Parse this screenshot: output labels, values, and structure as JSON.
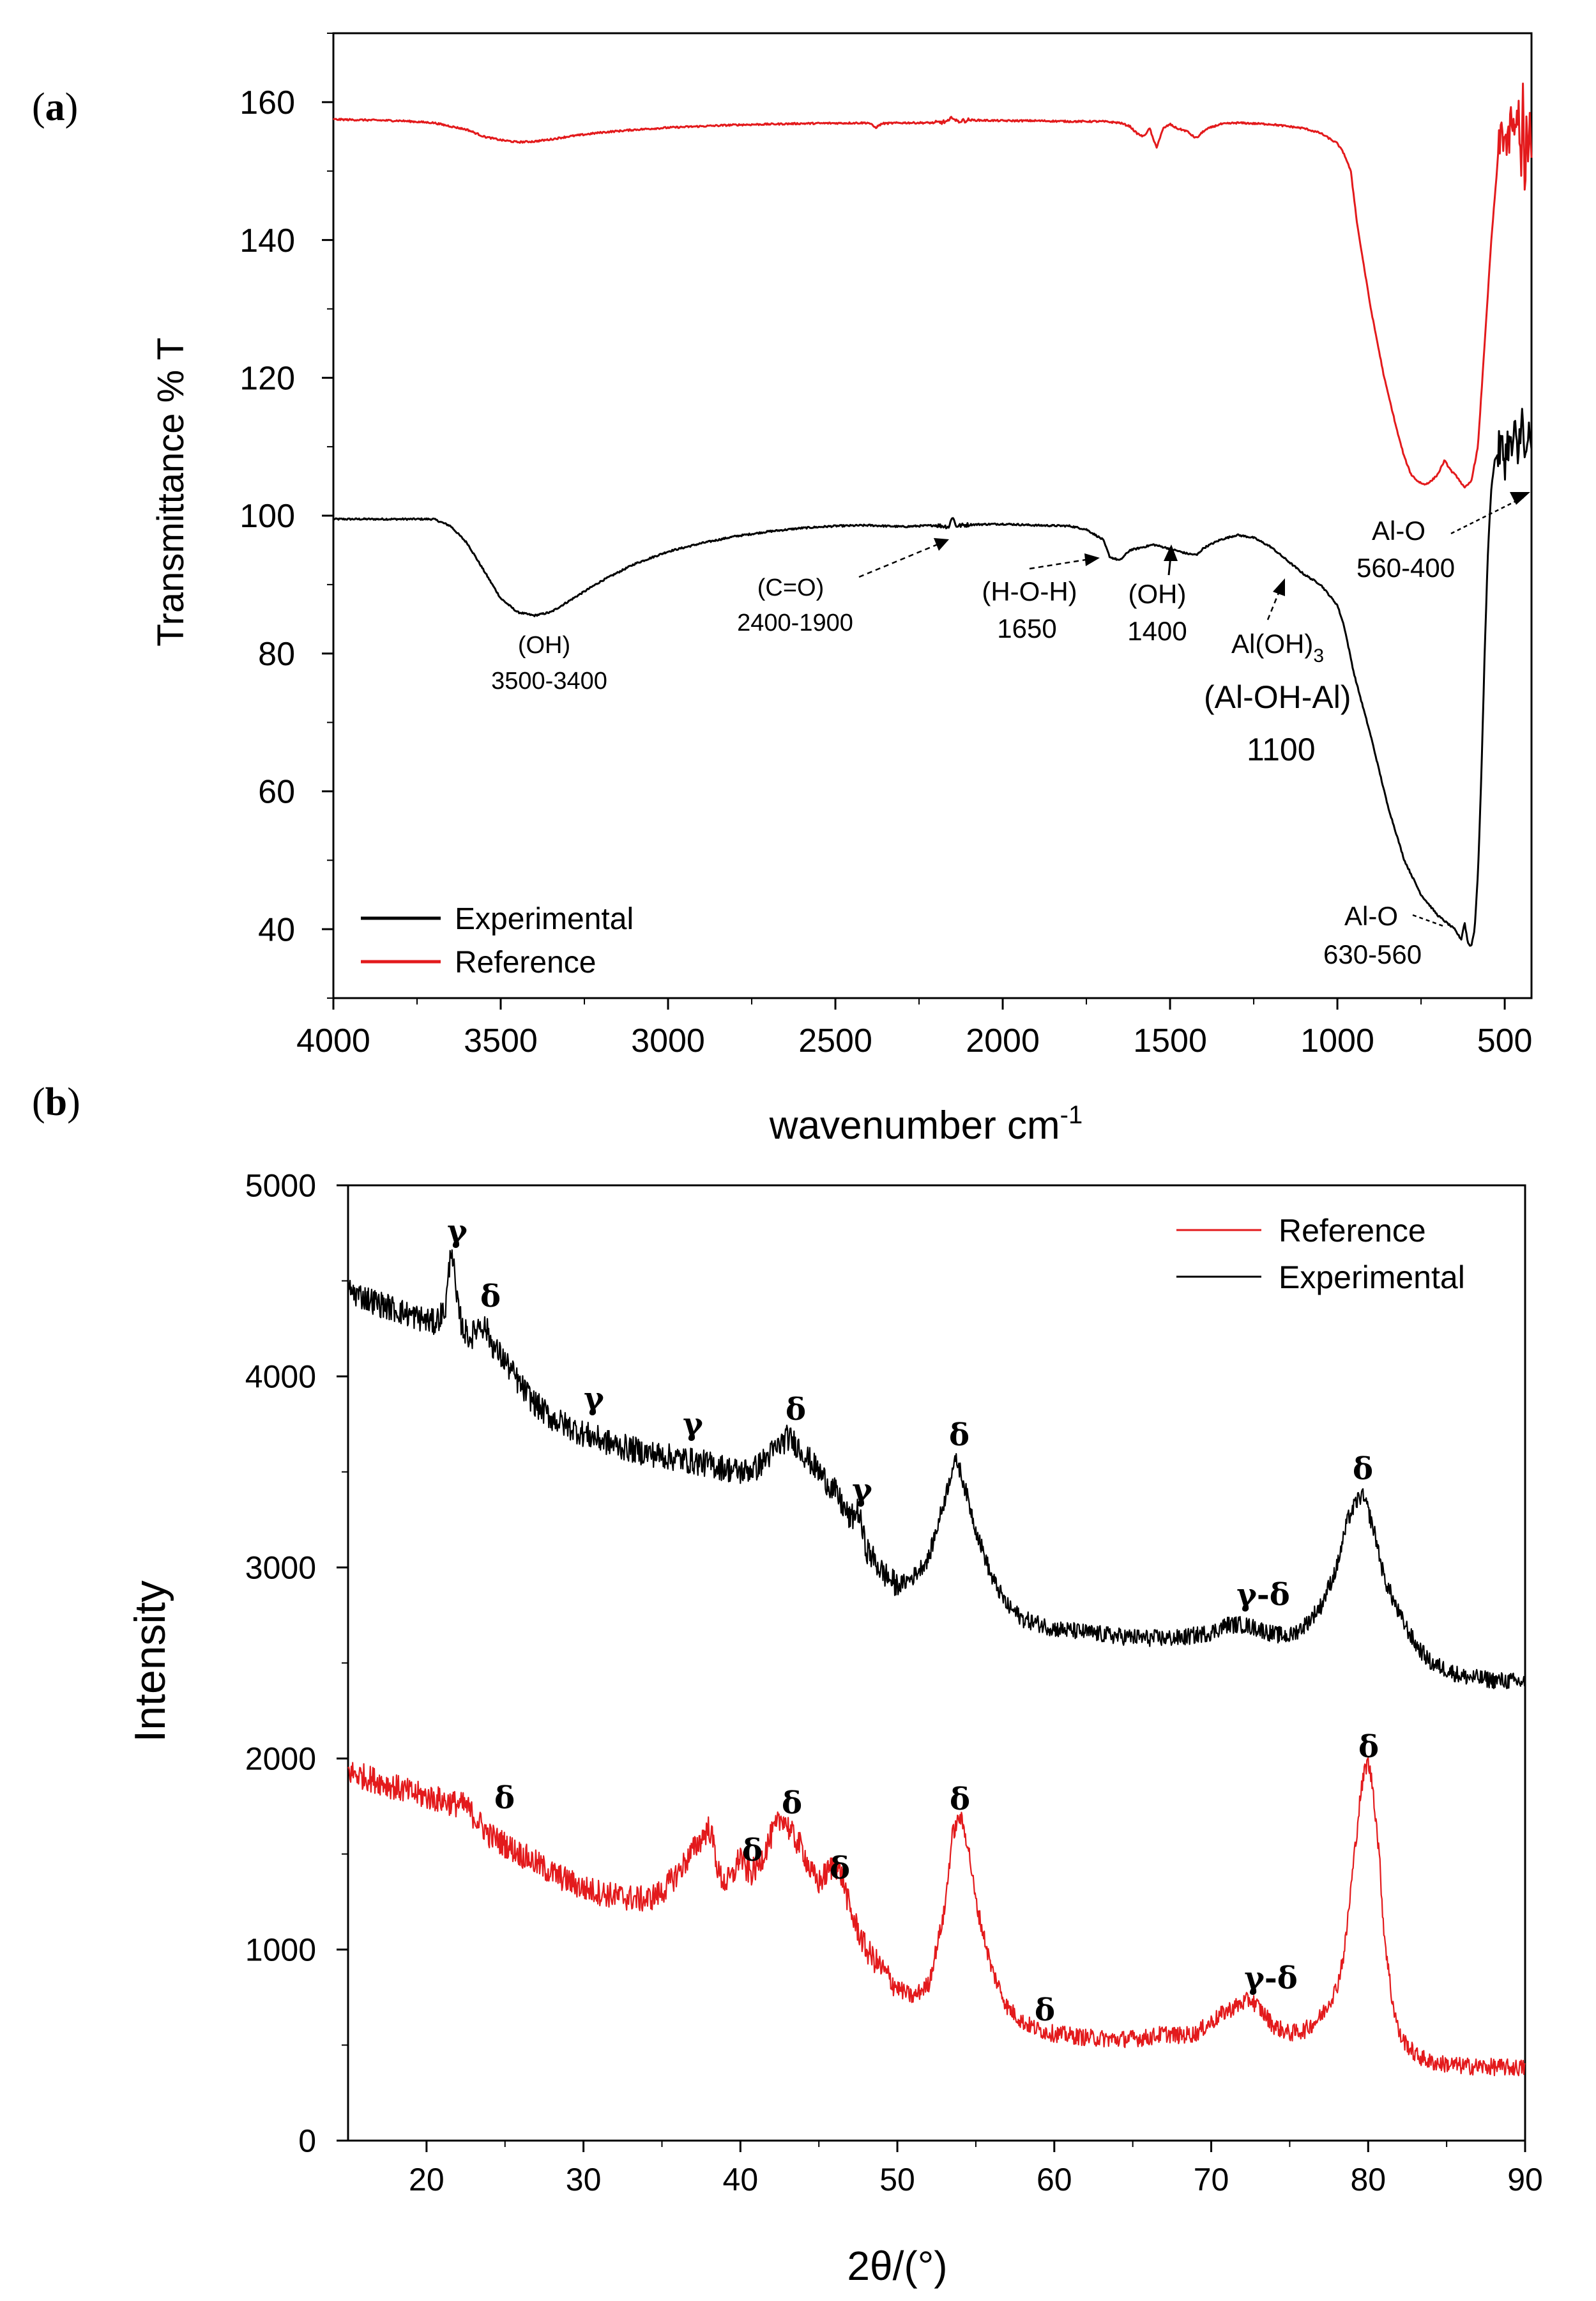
{
  "panels": [
    {
      "label": "(a)",
      "label_parts": [
        "(",
        "a",
        ")"
      ],
      "chart_data": {
        "type": "line",
        "title": "",
        "xlabel": "wavenumber cm",
        "xlabel_sup": "-1",
        "ylabel": "Transmittance % T",
        "xlim": [
          4000,
          420
        ],
        "ylim": [
          30,
          170
        ],
        "x_ticks": [
          "4000",
          "3500",
          "3000",
          "2500",
          "2000",
          "1500",
          "1000",
          "500"
        ],
        "x_tick_values": [
          4000,
          3500,
          3000,
          2500,
          2000,
          1500,
          1000,
          500
        ],
        "y_ticks": [
          "40",
          "60",
          "80",
          "100",
          "120",
          "140",
          "160"
        ],
        "y_tick_values": [
          40,
          60,
          80,
          100,
          120,
          140,
          160
        ],
        "legend": {
          "position": "bottom-left",
          "entries": [
            "Experimental",
            "Reference"
          ]
        },
        "series": [
          {
            "name": "Experimental",
            "color": "#000000",
            "x": [
              4000,
              3800,
              3700,
              3650,
              3600,
              3550,
              3500,
              3450,
              3400,
              3350,
              3300,
              3200,
              3100,
              3000,
              2900,
              2800,
              2700,
              2600,
              2500,
              2400,
              2300,
              2200,
              2160,
              2150,
              2140,
              2100,
              2000,
              1900,
              1800,
              1750,
              1700,
              1680,
              1650,
              1620,
              1600,
              1550,
              1500,
              1450,
              1420,
              1400,
              1380,
              1350,
              1300,
              1250,
              1200,
              1150,
              1100,
              1050,
              1000,
              980,
              950,
              900,
              850,
              800,
              750,
              700,
              650,
              630,
              620,
              610,
              600,
              590,
              580,
              570,
              560,
              550,
              540,
              530,
              520,
              510,
              500,
              490,
              480,
              470,
              460,
              450,
              440,
              430,
              420
            ],
            "y": [
              99.5,
              99.5,
              99.5,
              98.5,
              96,
              92,
              88,
              86,
              85.5,
              86,
              87.5,
              90.5,
              93,
              94.8,
              96,
              97,
              97.7,
              98.2,
              98.5,
              98.6,
              98.4,
              98.6,
              98.4,
              100,
              98.5,
              98.7,
              98.8,
              98.6,
              98.5,
              98,
              96.5,
              94,
              93.5,
              95,
              95.2,
              95.8,
              95.2,
              94.5,
              94.3,
              95.3,
              95.8,
              96.5,
              97.2,
              96.8,
              95.5,
              93.5,
              91.5,
              90,
              87,
              84,
              77,
              68,
              58,
              50,
              45,
              42,
              40,
              38.5,
              41,
              38,
              37.5,
              40,
              48,
              62,
              80,
              95,
              104,
              108,
              109,
              110,
              108,
              111,
              109,
              112,
              108,
              116,
              107,
              112,
              108
            ]
          },
          {
            "name": "Reference",
            "color": "#e31a1c",
            "x": [
              4000,
              3800,
              3700,
              3600,
              3550,
              3500,
              3450,
              3400,
              3350,
              3300,
              3200,
              3100,
              3000,
              2800,
              2600,
              2400,
              2380,
              2360,
              2300,
              2200,
              2160,
              2150,
              2140,
              2100,
              2000,
              1900,
              1800,
              1700,
              1650,
              1620,
              1600,
              1580,
              1560,
              1550,
              1540,
              1520,
              1500,
              1480,
              1450,
              1430,
              1420,
              1400,
              1380,
              1350,
              1300,
              1200,
              1100,
              1050,
              1000,
              980,
              960,
              950,
              940,
              920,
              900,
              880,
              860,
              840,
              820,
              800,
              780,
              760,
              740,
              720,
              700,
              680,
              660,
              640,
              620,
              600,
              580,
              560,
              540,
              520,
              510,
              500,
              490,
              480,
              470,
              460,
              450,
              445,
              440,
              435,
              430,
              425,
              420
            ],
            "y": [
              157.5,
              157.3,
              157,
              156,
              155,
              154.5,
              154.2,
              154.3,
              154.6,
              155,
              155.6,
              156,
              156.3,
              156.7,
              156.9,
              157,
              156.3,
              156.9,
              157,
              157,
              157.2,
              158,
              157.2,
              157.4,
              157.3,
              157.3,
              157.2,
              157.2,
              157,
              156.5,
              155.5,
              155,
              156.2,
              154.5,
              153.5,
              156.2,
              156.8,
              156.2,
              155.8,
              155,
              154.8,
              155.8,
              156.3,
              156.8,
              157,
              156.8,
              156.2,
              155.5,
              154,
              152.5,
              150,
              146,
              142,
              136,
              130,
              125,
              120,
              116,
              112,
              108.5,
              106,
              105,
              104.5,
              105,
              106,
              108,
              106.5,
              105.5,
              104,
              105,
              110,
              125,
              140,
              152,
              156,
              155,
              153,
              158,
              154,
              160,
              151,
              161,
              145,
              158,
              150,
              156,
              152
            ]
          }
        ],
        "annotations": [
          {
            "lines": [
              "(OH)",
              "3500-3400"
            ]
          },
          {
            "lines": [
              "(C=O)",
              "2400-1900"
            ]
          },
          {
            "lines": [
              "(H-O-H)",
              "1650"
            ]
          },
          {
            "lines": [
              "(OH)",
              "1400"
            ]
          },
          {
            "lines": [
              "Al(OH)",
              "(Al-OH-Al)",
              "1100"
            ],
            "subscript": "3"
          },
          {
            "lines": [
              "Al-O",
              "560-400"
            ]
          },
          {
            "lines": [
              "Al-O",
              "630-560"
            ]
          }
        ]
      }
    },
    {
      "label": "(b)",
      "label_parts": [
        "(",
        "b",
        ")"
      ],
      "chart_data": {
        "type": "line",
        "title": "",
        "xlabel": "2θ/(°)",
        "ylabel": "Intensity",
        "xlim": [
          15,
          90
        ],
        "ylim": [
          0,
          5000
        ],
        "x_ticks": [
          "20",
          "30",
          "40",
          "50",
          "60",
          "70",
          "80",
          "90"
        ],
        "x_tick_values": [
          20,
          30,
          40,
          50,
          60,
          70,
          80,
          90
        ],
        "y_ticks": [
          "0",
          "1000",
          "2000",
          "3000",
          "4000",
          "5000"
        ],
        "y_tick_values": [
          0,
          1000,
          2000,
          3000,
          4000,
          5000
        ],
        "legend": {
          "position": "top-right",
          "entries": [
            "Reference",
            "Experimental"
          ]
        },
        "series": [
          {
            "name": "Reference",
            "color": "#e31a1c",
            "x": [
              15,
              17,
              19,
              21,
              22.5,
              23,
              24,
              26,
              28,
              30,
              32,
              34,
              35,
              36,
              37,
              38,
              38.3,
              38.6,
              39,
              39.5,
              40,
              40.3,
              40.7,
              41.2,
              42,
              42.7,
              43,
              43.3,
              44,
              44.5,
              45,
              45.5,
              46,
              46.5,
              47,
              48,
              49,
              50,
              51,
              52,
              53,
              53.5,
              54,
              54.5,
              55,
              56,
              57,
              58,
              59,
              60,
              62,
              64,
              66,
              67,
              68,
              69,
              70,
              71,
              72,
              72.5,
              73,
              74,
              75,
              76,
              77,
              78,
              78.5,
              79,
              79.5,
              79.8,
              80,
              80.3,
              80.7,
              81,
              81.5,
              82,
              83,
              84,
              86,
              88,
              90
            ],
            "y": [
              1930,
              1880,
              1820,
              1780,
              1750,
              1700,
              1600,
              1500,
              1400,
              1320,
              1280,
              1260,
              1300,
              1400,
              1520,
              1640,
              1550,
              1400,
              1350,
              1380,
              1500,
              1420,
              1400,
              1450,
              1600,
              1700,
              1650,
              1600,
              1520,
              1400,
              1350,
              1400,
              1450,
              1380,
              1200,
              1000,
              900,
              800,
              750,
              820,
              1200,
              1600,
              1700,
              1550,
              1250,
              900,
              700,
              620,
              580,
              560,
              540,
              530,
              540,
              560,
              550,
              560,
              620,
              680,
              720,
              740,
              700,
              600,
              560,
              580,
              650,
              800,
              1000,
              1400,
              1800,
              1950,
              1980,
              1850,
              1500,
              1100,
              750,
              550,
              450,
              410,
              390,
              385,
              380
            ]
          },
          {
            "name": "Experimental",
            "color": "#000000",
            "x": [
              15,
              17,
              19,
              20.5,
              21.2,
              21.6,
              21.9,
              22.3,
              22.8,
              23.4,
              23.8,
              24.3,
              25,
              26,
              27,
              28,
              30,
              32,
              34,
              36,
              38,
              40,
              41,
              42,
              43,
              43.5,
              44,
              45,
              46,
              47,
              47.5,
              48,
              49,
              50,
              51,
              52,
              53,
              53.5,
              53.8,
              54.2,
              55,
              56,
              57,
              58,
              60,
              62,
              64,
              66,
              68,
              70,
              71,
              72,
              73,
              74,
              75,
              76,
              77,
              78,
              78.7,
              79.3,
              79.6,
              80,
              80.5,
              81,
              82,
              83,
              84,
              86,
              88,
              90
            ],
            "y": [
              4450,
              4380,
              4320,
              4280,
              4350,
              4700,
              4400,
              4250,
              4200,
              4280,
              4250,
              4150,
              4080,
              3950,
              3850,
              3780,
              3700,
              3640,
              3600,
              3570,
              3540,
              3500,
              3520,
              3600,
              3680,
              3650,
              3600,
              3500,
              3400,
              3250,
              3300,
              3100,
              2980,
              2900,
              2950,
              3050,
              3350,
              3520,
              3560,
              3450,
              3200,
              2950,
              2800,
              2730,
              2680,
              2660,
              2640,
              2630,
              2630,
              2660,
              2700,
              2700,
              2680,
              2650,
              2640,
              2700,
              2800,
              3000,
              3250,
              3350,
              3380,
              3300,
              3150,
              2950,
              2750,
              2600,
              2500,
              2430,
              2410,
              2400
            ]
          }
        ],
        "annotations": [
          {
            "text": "γ",
            "series": "Experimental"
          },
          {
            "text": "δ",
            "series": "Experimental"
          },
          {
            "text": "γ",
            "series": "Experimental"
          },
          {
            "text": "γ",
            "series": "Experimental"
          },
          {
            "text": "δ",
            "series": "Experimental"
          },
          {
            "text": "γ",
            "series": "Experimental"
          },
          {
            "text": "δ",
            "series": "Experimental"
          },
          {
            "text": "γ-δ",
            "series": "Experimental"
          },
          {
            "text": "δ",
            "series": "Experimental"
          },
          {
            "text": "δ",
            "series": "Reference"
          },
          {
            "text": "δ",
            "series": "Reference"
          },
          {
            "text": "δ",
            "series": "Reference"
          },
          {
            "text": "δ",
            "series": "Reference"
          },
          {
            "text": "δ",
            "series": "Reference"
          },
          {
            "text": "δ",
            "series": "Reference"
          },
          {
            "text": "γ-δ",
            "series": "Reference"
          },
          {
            "text": "δ",
            "series": "Reference"
          }
        ]
      }
    }
  ]
}
